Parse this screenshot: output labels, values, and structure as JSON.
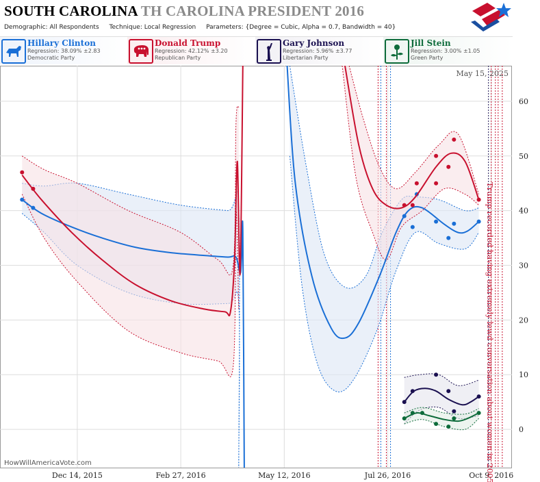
{
  "header": {
    "title_state": "SOUTH CAROLINA",
    "title_rest": "TH CAROLINA PRESIDENT 2016",
    "demographic_label": "Demographic:",
    "demographic_value": "All Respondents",
    "technique_label": "Technique:",
    "technique_value": "Local Regression",
    "parameters_label": "Parameters:",
    "parameters_value": "{Degree = Cubic, Alpha = 0.7, Bandwidth = 40}"
  },
  "candidates": [
    {
      "name": "Hillary Clinton",
      "regression": "Regression: 38.09% ±2.83",
      "party": "Democratic Party",
      "color": "#1a6fd6",
      "icon": "donkey-icon"
    },
    {
      "name": "Donald Trump",
      "regression": "Regression: 42.12% ±3.20",
      "party": "Republican Party",
      "color": "#c8102e",
      "icon": "elephant-icon"
    },
    {
      "name": "Gary Johnson",
      "regression": "Regression: 5.96% ±3.77",
      "party": "Libertarian Party",
      "color": "#1a1050",
      "icon": "liberty-statue-icon"
    },
    {
      "name": "Jill Stein",
      "regression": "Regression: 3.00% ±1.05",
      "party": "Green Party",
      "color": "#0d6b3a",
      "icon": "flower-icon"
    }
  ],
  "chart_data": {
    "type": "line",
    "date_label": "May 15, 2025",
    "watermark": "HowWillAmericaVote.com",
    "annotation": "Trump recorded having extremely lewd conversation about women in 2005",
    "x_ticks": [
      "Dec 14, 2015",
      "Feb 27, 2016",
      "May 12, 2016",
      "Jul 26, 2016",
      "Oct 9, 2016"
    ],
    "x_tick_dates": [
      "2015-12-14",
      "2016-02-27",
      "2016-05-12",
      "2016-07-26",
      "2016-10-09"
    ],
    "x_range": [
      "2015-10-19",
      "2016-10-24"
    ],
    "y_ticks": [
      0,
      10,
      20,
      30,
      40,
      50,
      60
    ],
    "ylim": [
      -7,
      66.5
    ],
    "grid": true,
    "event_lines": [
      {
        "date": "2016-07-19",
        "color": "#c8102e"
      },
      {
        "date": "2016-07-21",
        "color": "#1a6fd6"
      },
      {
        "date": "2016-07-25",
        "color": "#c8102e"
      },
      {
        "date": "2016-07-28",
        "color": "#1a6fd6"
      },
      {
        "date": "2016-10-07",
        "color": "#1a1050"
      },
      {
        "date": "2016-10-09",
        "color": "#c8102e"
      },
      {
        "date": "2016-10-12",
        "color": "#c8102e"
      },
      {
        "date": "2016-10-14",
        "color": "#c8102e"
      },
      {
        "date": "2016-10-17",
        "color": "#c8102e"
      }
    ],
    "series": [
      {
        "name": "Hillary Clinton",
        "color": "#1a6fd6",
        "band_fill": "#dce6f5",
        "points": [
          [
            "2015-11-04",
            42
          ],
          [
            "2015-11-12",
            40.5
          ],
          [
            "2016-08-07",
            39
          ],
          [
            "2016-08-13",
            37
          ],
          [
            "2016-08-16",
            43
          ],
          [
            "2016-08-30",
            38
          ],
          [
            "2016-09-08",
            35
          ],
          [
            "2016-09-12",
            37.6
          ],
          [
            "2016-09-30",
            38
          ]
        ],
        "line": [
          [
            "2015-11-04",
            42
          ],
          [
            "2015-11-18",
            39.5
          ],
          [
            "2015-12-10",
            37
          ],
          [
            "2016-01-01",
            35
          ],
          [
            "2016-01-25",
            33.3
          ],
          [
            "2016-02-20",
            32.3
          ],
          [
            "2016-03-15",
            31.8
          ],
          [
            "2016-04-01",
            31.5
          ],
          [
            "2016-04-07",
            31.5
          ],
          [
            "2016-04-10",
            28.5
          ],
          [
            "2016-04-11",
            31
          ],
          [
            "2016-04-12",
            36
          ],
          [
            "2016-04-13",
            -8
          ]
        ],
        "line2": [
          [
            "2016-05-14",
            68
          ],
          [
            "2016-05-20",
            45
          ],
          [
            "2016-06-01",
            28
          ],
          [
            "2016-06-15",
            18.5
          ],
          [
            "2016-06-25",
            16.7
          ],
          [
            "2016-07-05",
            19.5
          ],
          [
            "2016-07-20",
            28
          ],
          [
            "2016-08-01",
            36
          ],
          [
            "2016-08-10",
            40
          ],
          [
            "2016-08-20",
            40.5
          ],
          [
            "2016-09-05",
            37.5
          ],
          [
            "2016-09-15",
            36
          ],
          [
            "2016-09-22",
            36.3
          ],
          [
            "2016-09-30",
            38
          ]
        ],
        "band_upper": [
          [
            "2015-11-04",
            45
          ],
          [
            "2015-11-20",
            44.5
          ],
          [
            "2015-12-14",
            45
          ],
          [
            "2016-01-20",
            43
          ],
          [
            "2016-02-27",
            41
          ],
          [
            "2016-04-01",
            40
          ],
          [
            "2016-04-09",
            40
          ],
          [
            "2016-04-09",
            -8
          ]
        ],
        "band_lower": [
          [
            "2015-11-04",
            39.5
          ],
          [
            "2015-11-20",
            36
          ],
          [
            "2015-12-14",
            30
          ],
          [
            "2016-01-20",
            25
          ],
          [
            "2016-02-27",
            23
          ],
          [
            "2016-04-01",
            23
          ],
          [
            "2016-04-09",
            23
          ],
          [
            "2016-04-09",
            -8
          ]
        ],
        "band2_upper": [
          [
            "2016-05-16",
            66.5
          ],
          [
            "2016-05-28",
            48
          ],
          [
            "2016-06-10",
            32
          ],
          [
            "2016-06-25",
            26
          ],
          [
            "2016-07-10",
            28
          ],
          [
            "2016-07-22",
            36
          ],
          [
            "2016-08-05",
            42
          ],
          [
            "2016-08-15",
            42.5
          ],
          [
            "2016-09-01",
            42
          ],
          [
            "2016-09-20",
            40
          ],
          [
            "2016-09-30",
            40.5
          ]
        ],
        "band2_lower": [
          [
            "2016-05-16",
            50
          ],
          [
            "2016-05-25",
            26
          ],
          [
            "2016-06-05",
            12
          ],
          [
            "2016-06-18",
            7
          ],
          [
            "2016-07-01",
            9
          ],
          [
            "2016-07-18",
            18
          ],
          [
            "2016-08-01",
            29
          ],
          [
            "2016-08-15",
            36
          ],
          [
            "2016-09-01",
            34
          ],
          [
            "2016-09-20",
            33
          ],
          [
            "2016-09-30",
            36
          ]
        ]
      },
      {
        "name": "Donald Trump",
        "color": "#c8102e",
        "band_fill": "#f7e1e4",
        "points": [
          [
            "2015-11-04",
            47
          ],
          [
            "2015-11-12",
            44
          ],
          [
            "2016-08-07",
            41
          ],
          [
            "2016-08-13",
            41
          ],
          [
            "2016-08-16",
            45
          ],
          [
            "2016-08-30",
            50
          ],
          [
            "2016-09-08",
            48
          ],
          [
            "2016-09-12",
            53
          ],
          [
            "2016-08-30",
            45
          ],
          [
            "2016-09-30",
            42
          ]
        ],
        "line": [
          [
            "2015-11-04",
            46.5
          ],
          [
            "2015-11-18",
            42
          ],
          [
            "2015-12-10",
            36
          ],
          [
            "2016-01-01",
            31
          ],
          [
            "2016-01-25",
            26.5
          ],
          [
            "2016-02-20",
            23.5
          ],
          [
            "2016-03-15",
            22
          ],
          [
            "2016-03-30",
            21.5
          ],
          [
            "2016-04-03",
            21.5
          ],
          [
            "2016-04-06",
            31
          ],
          [
            "2016-04-08",
            49
          ],
          [
            "2016-04-10",
            28.5
          ],
          [
            "2016-04-12",
            66.5
          ]
        ],
        "line2": [
          [
            "2016-06-25",
            66.5
          ],
          [
            "2016-07-05",
            52
          ],
          [
            "2016-07-15",
            44
          ],
          [
            "2016-07-25",
            41
          ],
          [
            "2016-08-05",
            40.5
          ],
          [
            "2016-08-15",
            42.5
          ],
          [
            "2016-08-30",
            48
          ],
          [
            "2016-09-10",
            50.5
          ],
          [
            "2016-09-20",
            49
          ],
          [
            "2016-09-30",
            42
          ]
        ],
        "band_upper": [
          [
            "2015-11-04",
            50
          ],
          [
            "2015-11-20",
            47.5
          ],
          [
            "2015-12-14",
            45
          ],
          [
            "2016-01-20",
            40
          ],
          [
            "2016-02-27",
            36
          ],
          [
            "2016-03-25",
            31
          ],
          [
            "2016-04-05",
            30
          ],
          [
            "2016-04-07",
            56
          ],
          [
            "2016-04-09",
            59
          ]
        ],
        "band_lower": [
          [
            "2015-11-04",
            43
          ],
          [
            "2015-11-20",
            35
          ],
          [
            "2015-12-14",
            27
          ],
          [
            "2016-01-20",
            18
          ],
          [
            "2016-02-27",
            14
          ],
          [
            "2016-03-25",
            12.5
          ],
          [
            "2016-04-05",
            11.5
          ],
          [
            "2016-04-07",
            40
          ],
          [
            "2016-04-09",
            22
          ]
        ],
        "band2_upper": [
          [
            "2016-06-28",
            66.5
          ],
          [
            "2016-07-08",
            57
          ],
          [
            "2016-07-20",
            48
          ],
          [
            "2016-08-01",
            44
          ],
          [
            "2016-08-15",
            47
          ],
          [
            "2016-09-01",
            52
          ],
          [
            "2016-09-15",
            54
          ],
          [
            "2016-09-30",
            43
          ]
        ],
        "band2_lower": [
          [
            "2016-06-23",
            66.5
          ],
          [
            "2016-07-03",
            46
          ],
          [
            "2016-07-15",
            36
          ],
          [
            "2016-07-25",
            31
          ],
          [
            "2016-08-05",
            37
          ],
          [
            "2016-08-20",
            40
          ],
          [
            "2016-09-05",
            44
          ],
          [
            "2016-09-20",
            43
          ],
          [
            "2016-09-30",
            41
          ]
        ]
      },
      {
        "name": "Gary Johnson",
        "color": "#1a1050",
        "band_fill": "#e5e5ec",
        "points": [
          [
            "2016-08-07",
            5
          ],
          [
            "2016-08-13",
            7
          ],
          [
            "2016-08-30",
            10
          ],
          [
            "2016-09-08",
            7
          ],
          [
            "2016-09-12",
            3.3
          ],
          [
            "2016-09-30",
            6
          ]
        ],
        "line": [
          [
            "2016-08-07",
            5
          ],
          [
            "2016-08-14",
            7
          ],
          [
            "2016-08-22",
            7.5
          ],
          [
            "2016-08-30",
            7
          ],
          [
            "2016-09-08",
            5.5
          ],
          [
            "2016-09-18",
            4.5
          ],
          [
            "2016-09-24",
            5
          ],
          [
            "2016-09-30",
            6
          ]
        ],
        "band_upper": [
          [
            "2016-08-07",
            9.5
          ],
          [
            "2016-08-18",
            10
          ],
          [
            "2016-09-01",
            10
          ],
          [
            "2016-09-15",
            8
          ],
          [
            "2016-09-30",
            9
          ]
        ],
        "band_lower": [
          [
            "2016-08-07",
            1
          ],
          [
            "2016-08-18",
            3.5
          ],
          [
            "2016-09-01",
            4
          ],
          [
            "2016-09-15",
            2
          ],
          [
            "2016-09-30",
            2.5
          ]
        ]
      },
      {
        "name": "Jill Stein",
        "color": "#0d6b3a",
        "band_fill": "#e1ece5",
        "points": [
          [
            "2016-08-07",
            2
          ],
          [
            "2016-08-13",
            3
          ],
          [
            "2016-08-20",
            3
          ],
          [
            "2016-08-30",
            1
          ],
          [
            "2016-09-08",
            0.5
          ],
          [
            "2016-09-12",
            2
          ],
          [
            "2016-09-30",
            3
          ]
        ],
        "line": [
          [
            "2016-08-07",
            2
          ],
          [
            "2016-08-16",
            3
          ],
          [
            "2016-08-25",
            2.5
          ],
          [
            "2016-09-05",
            1.8
          ],
          [
            "2016-09-15",
            1.5
          ],
          [
            "2016-09-22",
            2
          ],
          [
            "2016-09-30",
            3
          ]
        ],
        "band_upper": [
          [
            "2016-08-07",
            3
          ],
          [
            "2016-08-20",
            4
          ],
          [
            "2016-09-05",
            3
          ],
          [
            "2016-09-20",
            2.8
          ],
          [
            "2016-09-30",
            3.8
          ]
        ],
        "band_lower": [
          [
            "2016-08-07",
            1
          ],
          [
            "2016-08-20",
            1.8
          ],
          [
            "2016-09-05",
            0.5
          ],
          [
            "2016-09-20",
            0
          ],
          [
            "2016-09-30",
            2
          ]
        ]
      }
    ]
  }
}
